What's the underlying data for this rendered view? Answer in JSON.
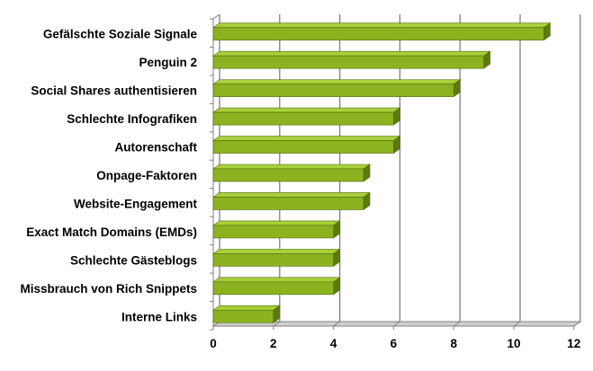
{
  "chart_data": {
    "type": "bar",
    "orientation": "horizontal",
    "style": "3d",
    "categories": [
      "Gefälschte Soziale Signale",
      "Penguin 2",
      "Social Shares authentisieren",
      "Schlechte Infografiken",
      "Autorenschaft",
      "Onpage-Faktoren",
      "Website-Engagement",
      "Exact Match Domains (EMDs)",
      "Schlechte Gästeblogs",
      "Missbrauch von Rich Snippets",
      "Interne Links"
    ],
    "values": [
      11,
      9,
      8,
      6,
      6,
      5,
      5,
      4,
      4,
      4,
      2
    ],
    "xlim": [
      0,
      12
    ],
    "x_ticks": [
      "0",
      "2",
      "4",
      "6",
      "8",
      "10",
      "12"
    ],
    "grid": true,
    "legend": "none",
    "colors": {
      "bar_front": "#8cb31f",
      "bar_top": "#a9cf3a",
      "bar_side": "#5d7a10",
      "bar_edge": "#4f6a0b",
      "grid": "#7f7f7f",
      "floor": "#d0d0d0"
    }
  }
}
